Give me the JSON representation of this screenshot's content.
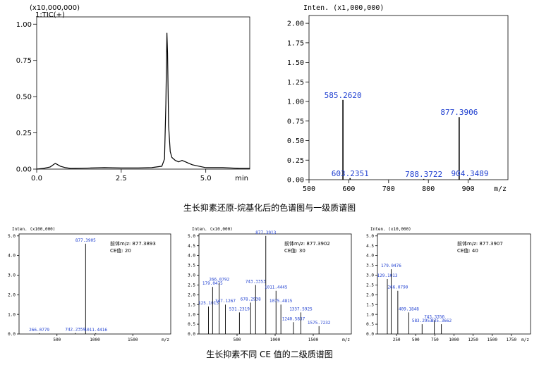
{
  "figure": {
    "caption_top": "生长抑素还原-烷基化后的色谱图与一级质谱图",
    "caption_bottom": "生长抑素不同 CE 值的二级质谱图"
  },
  "chart_data": [
    {
      "id": "tic",
      "type": "line",
      "title": "1:TIC(+)",
      "scale_label": "(x10,000,000)",
      "xlabel": "min",
      "xlim": [
        0,
        6.3
      ],
      "ylim": [
        0,
        1.05
      ],
      "xticks": [
        0.0,
        2.5,
        5.0
      ],
      "xtick_labels": [
        "0.0",
        "2.5",
        "5.0"
      ],
      "yticks": [
        0.0,
        0.25,
        0.5,
        0.75,
        1.0
      ],
      "ytick_labels": [
        "0.00",
        "0.25",
        "0.50",
        "0.75",
        "1.00"
      ],
      "series": [
        {
          "x": [
            0,
            0.2,
            0.4,
            0.55,
            0.7,
            0.85,
            1.0,
            1.3,
            1.6,
            2.0,
            2.5,
            3.0,
            3.4,
            3.7,
            3.78,
            3.82,
            3.85,
            3.87,
            3.9,
            3.95,
            4.0,
            4.1,
            4.2,
            4.3,
            4.4,
            4.5,
            4.6,
            4.8,
            5.0,
            5.5,
            6.0,
            6.3
          ],
          "y": [
            0,
            0.005,
            0.015,
            0.04,
            0.02,
            0.01,
            0.005,
            0.006,
            0.008,
            0.01,
            0.008,
            0.008,
            0.01,
            0.02,
            0.07,
            0.45,
            0.94,
            0.8,
            0.3,
            0.12,
            0.08,
            0.06,
            0.05,
            0.06,
            0.05,
            0.04,
            0.03,
            0.02,
            0.01,
            0.01,
            0.005,
            0.005
          ]
        }
      ]
    },
    {
      "id": "ms1",
      "type": "bar",
      "scale_label": "Inten. (x1,000,000)",
      "xlabel": "m/z",
      "xlim": [
        500,
        1000
      ],
      "ylim": [
        0,
        2.1
      ],
      "xticks": [
        500,
        600,
        700,
        800,
        900
      ],
      "xtick_labels": [
        "500",
        "600",
        "700",
        "800",
        "900"
      ],
      "yticks": [
        0.0,
        0.25,
        0.5,
        0.75,
        1.0,
        1.25,
        1.5,
        1.75,
        2.0
      ],
      "ytick_labels": [
        "0.00",
        "0.25",
        "0.50",
        "0.75",
        "1.00",
        "1.25",
        "1.50",
        "1.75",
        "2.00"
      ],
      "peaks": [
        {
          "x": 585.262,
          "y": 1.02,
          "label": "585.2620"
        },
        {
          "x": 603.2351,
          "y": 0.02,
          "label": "603.2351"
        },
        {
          "x": 788.3722,
          "y": 0.01,
          "label": "788.3722"
        },
        {
          "x": 877.3906,
          "y": 0.8,
          "label": "877.3906"
        },
        {
          "x": 904.3489,
          "y": 0.02,
          "label": "904.3489"
        }
      ]
    },
    {
      "id": "ms2_ce20",
      "type": "bar",
      "scale_label": "Inten. (x100,000)",
      "precursor": "前体m/z: 877.3893",
      "ce": "CE值: 20",
      "xlabel": "m/z",
      "xlim": [
        0,
        2000
      ],
      "ylim": [
        0,
        5.1
      ],
      "xticks": [
        500,
        1000,
        1500
      ],
      "xtick_labels": [
        "500",
        "1000",
        "1500"
      ],
      "yticks": [
        0,
        1,
        2,
        3,
        4,
        5
      ],
      "ytick_labels": [
        "0.0",
        "1.0",
        "2.0",
        "3.0",
        "4.0",
        "5.0"
      ],
      "peaks": [
        {
          "x": 266.0779,
          "y": 0.04,
          "label": "266.0779"
        },
        {
          "x": 742.2359,
          "y": 0.05,
          "label": "742.2359"
        },
        {
          "x": 877.3905,
          "y": 4.6,
          "label": "877.3905"
        },
        {
          "x": 1011.4416,
          "y": 0.04,
          "label": "1011.4416"
        }
      ]
    },
    {
      "id": "ms2_ce30",
      "type": "bar",
      "scale_label": "Inten. (x10,000)",
      "precursor": "前体m/z: 877.3902",
      "ce": "CE值: 30",
      "xlabel": "m/z",
      "xlim": [
        0,
        2000
      ],
      "ylim": [
        0,
        5.1
      ],
      "xticks": [
        500,
        1000,
        1500
      ],
      "xtick_labels": [
        "500",
        "1000",
        "1500"
      ],
      "yticks": [
        0,
        0.5,
        1,
        1.5,
        2,
        2.5,
        3,
        3.5,
        4,
        4.5,
        5
      ],
      "ytick_labels": [
        "0.0",
        "0.5",
        "1.0",
        "1.5",
        "2.0",
        "2.5",
        "3.0",
        "3.5",
        "4.0",
        "4.5",
        "5.0"
      ],
      "peaks": [
        {
          "x": 125.1013,
          "y": 1.4,
          "label": "125.1013"
        },
        {
          "x": 179.0475,
          "y": 2.4,
          "label": "179.0475"
        },
        {
          "x": 266.0792,
          "y": 2.6,
          "label": "266.0792"
        },
        {
          "x": 347.1267,
          "y": 1.5,
          "label": "347.1267"
        },
        {
          "x": 531.2319,
          "y": 1.1,
          "label": "531.2319"
        },
        {
          "x": 678.2938,
          "y": 1.6,
          "label": "678.2938"
        },
        {
          "x": 743.3353,
          "y": 2.5,
          "label": "743.3353"
        },
        {
          "x": 877.3913,
          "y": 5.0,
          "label": "877.3913"
        },
        {
          "x": 1011.4445,
          "y": 2.2,
          "label": "1011.4445"
        },
        {
          "x": 1075.4815,
          "y": 1.5,
          "label": "1075.4815"
        },
        {
          "x": 1240.5837,
          "y": 0.6,
          "label": "1240.5837"
        },
        {
          "x": 1337.5925,
          "y": 1.1,
          "label": "1337.5925"
        },
        {
          "x": 1575.7232,
          "y": 0.4,
          "label": "1575.7232"
        }
      ]
    },
    {
      "id": "ms2_ce40",
      "type": "bar",
      "scale_label": "Inten. (x10,000)",
      "precursor": "前体m/z: 877.3907",
      "ce": "CE值: 40",
      "xlabel": "m/z",
      "xlim": [
        0,
        2000
      ],
      "ylim": [
        0,
        5.1
      ],
      "xticks": [
        250,
        500,
        750,
        1000,
        1250,
        1500,
        1750
      ],
      "xtick_labels": [
        "250",
        "500",
        "750",
        "1000",
        "1250",
        "1500",
        "1750"
      ],
      "yticks": [
        0,
        0.5,
        1,
        1.5,
        2,
        2.5,
        3,
        3.5,
        4,
        4.5,
        5
      ],
      "ytick_labels": [
        "0.0",
        "0.5",
        "1.0",
        "1.5",
        "2.0",
        "2.5",
        "3.0",
        "3.5",
        "4.0",
        "4.5",
        "5.0"
      ],
      "peaks": [
        {
          "x": 129.1013,
          "y": 2.8,
          "label": "129.1013"
        },
        {
          "x": 179.0476,
          "y": 3.3,
          "label": "179.0476"
        },
        {
          "x": 266.079,
          "y": 2.2,
          "label": "266.0790"
        },
        {
          "x": 409.1848,
          "y": 1.1,
          "label": "409.1848"
        },
        {
          "x": 583.2953,
          "y": 0.5,
          "label": "583.2953"
        },
        {
          "x": 743.3356,
          "y": 0.7,
          "label": "743.3356"
        },
        {
          "x": 835.3662,
          "y": 0.5,
          "label": "835.3662"
        }
      ]
    }
  ]
}
